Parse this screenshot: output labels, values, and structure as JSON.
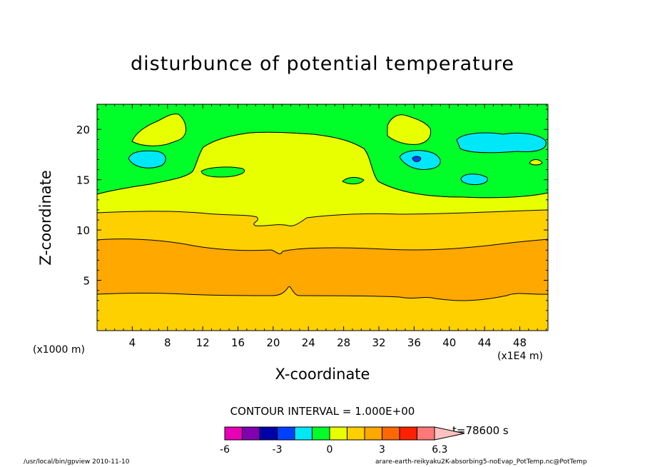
{
  "chart_data": {
    "type": "heatmap",
    "title": "disturbunce of potential temperature",
    "xlabel": "X-coordinate",
    "ylabel": "Z-coordinate",
    "x_unit": "(x1E4 m)",
    "y_unit": "(x1000 m)",
    "xlim": [
      0,
      51.2
    ],
    "ylim": [
      0,
      22.5
    ],
    "xticks": [
      4,
      8,
      12,
      16,
      20,
      24,
      28,
      32,
      36,
      40,
      44,
      48
    ],
    "yticks": [
      5,
      10,
      15,
      20
    ],
    "contour_interval": "CONTOUR INTERVAL = 1.000E+00",
    "time_label": "t=78600 s",
    "colorbar": {
      "levels": [
        -6,
        -5,
        -4,
        -3,
        -2,
        -1,
        0,
        1,
        2,
        3,
        4,
        5,
        6
      ],
      "tick_labels": [
        "-6",
        "-3",
        "0",
        "3",
        "6.3"
      ],
      "tick_values": [
        -6,
        -3,
        0,
        3,
        6.3
      ],
      "colors": [
        "#e800b6",
        "#8000b0",
        "#0000a8",
        "#0040ff",
        "#00e8f8",
        "#00ff28",
        "#e8ff00",
        "#ffd000",
        "#ffa800",
        "#ff6800",
        "#ff2000",
        "#ff7878",
        "#ffc0c0"
      ]
    },
    "regions": [
      {
        "level": 3,
        "color": "#ffd000",
        "z_range": [
          0,
          3.5
        ]
      },
      {
        "level": 2,
        "color": "#ffa800",
        "z_range": [
          3.5,
          9.3
        ]
      },
      {
        "level": 1,
        "color": "#ffd000",
        "z_range": [
          9.3,
          11.8
        ]
      },
      {
        "level": 0,
        "color": "#e8ff00",
        "z_range": [
          11.8,
          14.0
        ]
      },
      {
        "level": -1,
        "color": "#00ff28",
        "z_range": [
          14.0,
          22.5
        ]
      }
    ],
    "grid": false
  },
  "footer": {
    "left": "/usr/local/bin/gpview  2010-11-10",
    "right": "arare-earth-reikyaku2K-absorbing5-noEvap_PotTemp.nc@PotTemp"
  }
}
